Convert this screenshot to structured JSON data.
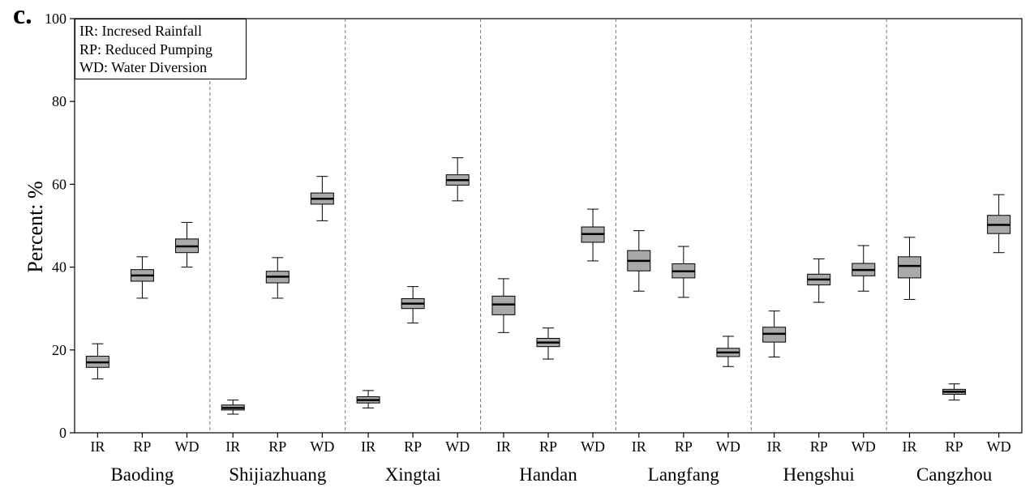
{
  "panel_label": "c.",
  "legend": {
    "lines": [
      "IR: Incresed Rainfall",
      "RP: Reduced Pumping",
      "WD: Water Diversion"
    ]
  },
  "chart_data": {
    "type": "box",
    "title": "",
    "ylabel": "Percent: %",
    "xlabel": "",
    "ylim": [
      0,
      100
    ],
    "yticks": [
      0,
      20,
      40,
      60,
      80,
      100
    ],
    "grid": false,
    "legend_position": "top-left",
    "box_color": "#a9a9a9",
    "scenarios": [
      "IR",
      "RP",
      "WD"
    ],
    "groups": [
      {
        "name": "Baoding",
        "boxes": [
          {
            "label": "IR",
            "whisker_low": 13,
            "q1": 15.8,
            "median": 17,
            "q3": 18.5,
            "whisker_high": 21.5
          },
          {
            "label": "RP",
            "whisker_low": 32.5,
            "q1": 36.6,
            "median": 38,
            "q3": 39.4,
            "whisker_high": 42.5
          },
          {
            "label": "WD",
            "whisker_low": 40,
            "q1": 43.5,
            "median": 45,
            "q3": 46.8,
            "whisker_high": 50.8
          }
        ]
      },
      {
        "name": "Shijiazhuang",
        "boxes": [
          {
            "label": "IR",
            "whisker_low": 4.5,
            "q1": 5.5,
            "median": 6,
            "q3": 6.7,
            "whisker_high": 7.9
          },
          {
            "label": "RP",
            "whisker_low": 32.5,
            "q1": 36.2,
            "median": 37.7,
            "q3": 39,
            "whisker_high": 42.3
          },
          {
            "label": "WD",
            "whisker_low": 51.2,
            "q1": 55.2,
            "median": 56.5,
            "q3": 57.9,
            "whisker_high": 61.9
          }
        ]
      },
      {
        "name": "Xingtai",
        "boxes": [
          {
            "label": "IR",
            "whisker_low": 6,
            "q1": 7.2,
            "median": 7.9,
            "q3": 8.7,
            "whisker_high": 10.2
          },
          {
            "label": "RP",
            "whisker_low": 26.5,
            "q1": 30,
            "median": 31.2,
            "q3": 32.4,
            "whisker_high": 35.3
          },
          {
            "label": "WD",
            "whisker_low": 56,
            "q1": 59.8,
            "median": 61,
            "q3": 62.3,
            "whisker_high": 66.4
          }
        ]
      },
      {
        "name": "Handan",
        "boxes": [
          {
            "label": "IR",
            "whisker_low": 24.2,
            "q1": 28.5,
            "median": 31,
            "q3": 33,
            "whisker_high": 37.2
          },
          {
            "label": "RP",
            "whisker_low": 17.8,
            "q1": 20.8,
            "median": 21.8,
            "q3": 22.8,
            "whisker_high": 25.3
          },
          {
            "label": "WD",
            "whisker_low": 41.5,
            "q1": 46,
            "median": 48,
            "q3": 49.7,
            "whisker_high": 54
          }
        ]
      },
      {
        "name": "Langfang",
        "boxes": [
          {
            "label": "IR",
            "whisker_low": 34.2,
            "q1": 39.1,
            "median": 41.5,
            "q3": 44,
            "whisker_high": 48.8
          },
          {
            "label": "RP",
            "whisker_low": 32.7,
            "q1": 37.4,
            "median": 39,
            "q3": 40.8,
            "whisker_high": 45
          },
          {
            "label": "WD",
            "whisker_low": 16,
            "q1": 18.4,
            "median": 19.4,
            "q3": 20.4,
            "whisker_high": 23.3
          }
        ]
      },
      {
        "name": "Hengshui",
        "boxes": [
          {
            "label": "IR",
            "whisker_low": 18.3,
            "q1": 21.9,
            "median": 23.9,
            "q3": 25.5,
            "whisker_high": 29.4
          },
          {
            "label": "RP",
            "whisker_low": 31.5,
            "q1": 35.7,
            "median": 37,
            "q3": 38.3,
            "whisker_high": 42
          },
          {
            "label": "WD",
            "whisker_low": 34.2,
            "q1": 37.9,
            "median": 39.3,
            "q3": 40.9,
            "whisker_high": 45.2
          }
        ]
      },
      {
        "name": "Cangzhou",
        "boxes": [
          {
            "label": "IR",
            "whisker_low": 32.2,
            "q1": 37.4,
            "median": 40.3,
            "q3": 42.5,
            "whisker_high": 47.2
          },
          {
            "label": "RP",
            "whisker_low": 7.9,
            "q1": 9.3,
            "median": 9.9,
            "q3": 10.5,
            "whisker_high": 11.8
          },
          {
            "label": "WD",
            "whisker_low": 43.5,
            "q1": 48.1,
            "median": 50.2,
            "q3": 52.5,
            "whisker_high": 57.5
          }
        ]
      }
    ]
  }
}
